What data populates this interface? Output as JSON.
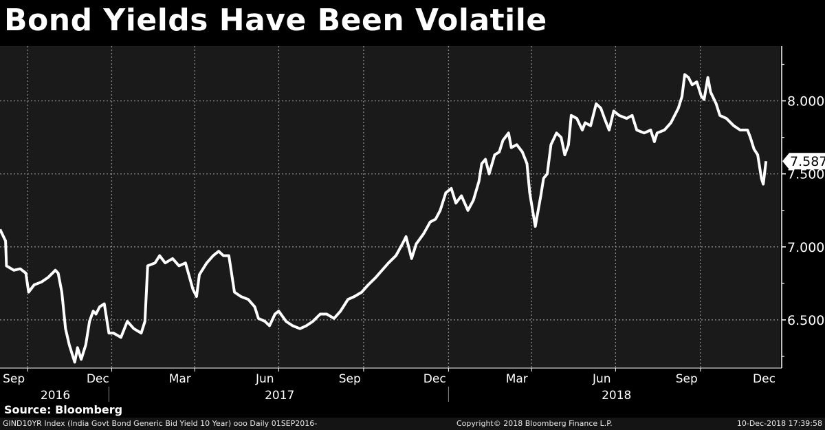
{
  "title": "Bond Yields Have Been Volatile",
  "source": "Source: Bloomberg",
  "footer": {
    "index_info": "GIND10YR Index (India Govt Bond Generic Bid Yield 10 Year) ooo  Daily 01SEP2016-",
    "copyright": "Copyright© 2018 Bloomberg Finance L.P.",
    "timestamp": "10-Dec-2018 17:39:58"
  },
  "colors": {
    "background": "#000000",
    "plot_bg": "#1a1a1a",
    "line": "#ffffff",
    "grid": "#8a8a8a"
  },
  "chart_data": {
    "type": "line",
    "title": "Bond Yields Have Been Volatile",
    "x_unit": "days since 2016-09-01",
    "x_start": "2016-09-01",
    "x_end": "2018-12-10",
    "xlim": [
      0,
      847
    ],
    "ylim": [
      6.17,
      8.375
    ],
    "y_ticks": [
      6.5,
      7.0,
      7.5,
      8.0
    ],
    "y_tick_labels": [
      "6.500",
      "7.000",
      "7.500",
      "8.000"
    ],
    "y_axis_side": "right",
    "grid": true,
    "month_ticks": [
      {
        "label": "Sep",
        "day": 15
      },
      {
        "label": "Dec",
        "day": 106
      },
      {
        "label": "Mar",
        "day": 195
      },
      {
        "label": "Jun",
        "day": 287
      },
      {
        "label": "Sep",
        "day": 379
      },
      {
        "label": "Dec",
        "day": 471
      },
      {
        "label": "Mar",
        "day": 560
      },
      {
        "label": "Jun",
        "day": 652
      },
      {
        "label": "Sep",
        "day": 744
      },
      {
        "label": "Dec",
        "day": 828
      }
    ],
    "year_ticks": [
      {
        "label": "2016",
        "day": 60
      },
      {
        "label": "2017",
        "day": 303
      },
      {
        "label": "2018",
        "day": 668
      }
    ],
    "year_boundaries": [
      118,
      486
    ],
    "quarter_gridlines": [
      30,
      121,
      211,
      302,
      394,
      486,
      576,
      667,
      759
    ],
    "last_value": 7.587,
    "last_value_label": "7.587",
    "series": [
      {
        "name": "GIND10YR Index",
        "points": [
          [
            0,
            7.12
          ],
          [
            6,
            7.04
          ],
          [
            7,
            6.87
          ],
          [
            15,
            6.84
          ],
          [
            22,
            6.85
          ],
          [
            28,
            6.82
          ],
          [
            31,
            6.69
          ],
          [
            37,
            6.74
          ],
          [
            45,
            6.76
          ],
          [
            52,
            6.79
          ],
          [
            60,
            6.84
          ],
          [
            63,
            6.82
          ],
          [
            67,
            6.69
          ],
          [
            71,
            6.44
          ],
          [
            75,
            6.33
          ],
          [
            81,
            6.21
          ],
          [
            84,
            6.31
          ],
          [
            88,
            6.23
          ],
          [
            93,
            6.33
          ],
          [
            97,
            6.49
          ],
          [
            101,
            6.56
          ],
          [
            104,
            6.54
          ],
          [
            108,
            6.59
          ],
          [
            113,
            6.61
          ],
          [
            118,
            6.41
          ],
          [
            123,
            6.41
          ],
          [
            131,
            6.38
          ],
          [
            138,
            6.49
          ],
          [
            145,
            6.44
          ],
          [
            153,
            6.41
          ],
          [
            157,
            6.49
          ],
          [
            160,
            6.87
          ],
          [
            168,
            6.89
          ],
          [
            173,
            6.94
          ],
          [
            179,
            6.89
          ],
          [
            187,
            6.92
          ],
          [
            194,
            6.87
          ],
          [
            201,
            6.89
          ],
          [
            209,
            6.71
          ],
          [
            213,
            6.66
          ],
          [
            216,
            6.81
          ],
          [
            224,
            6.89
          ],
          [
            231,
            6.94
          ],
          [
            237,
            6.97
          ],
          [
            242,
            6.94
          ],
          [
            248,
            6.94
          ],
          [
            254,
            6.69
          ],
          [
            261,
            6.66
          ],
          [
            269,
            6.64
          ],
          [
            276,
            6.59
          ],
          [
            280,
            6.51
          ],
          [
            287,
            6.49
          ],
          [
            292,
            6.46
          ],
          [
            298,
            6.54
          ],
          [
            302,
            6.56
          ],
          [
            310,
            6.49
          ],
          [
            317,
            6.46
          ],
          [
            325,
            6.44
          ],
          [
            332,
            6.46
          ],
          [
            339,
            6.49
          ],
          [
            347,
            6.54
          ],
          [
            354,
            6.54
          ],
          [
            362,
            6.51
          ],
          [
            369,
            6.56
          ],
          [
            377,
            6.64
          ],
          [
            384,
            6.66
          ],
          [
            392,
            6.69
          ],
          [
            399,
            6.74
          ],
          [
            407,
            6.79
          ],
          [
            414,
            6.84
          ],
          [
            421,
            6.89
          ],
          [
            429,
            6.94
          ],
          [
            436,
            7.02
          ],
          [
            440,
            7.07
          ],
          [
            446,
            6.92
          ],
          [
            451,
            7.02
          ],
          [
            459,
            7.09
          ],
          [
            466,
            7.17
          ],
          [
            472,
            7.19
          ],
          [
            477,
            7.25
          ],
          [
            483,
            7.37
          ],
          [
            489,
            7.4
          ],
          [
            494,
            7.3
          ],
          [
            500,
            7.35
          ],
          [
            507,
            7.25
          ],
          [
            513,
            7.32
          ],
          [
            519,
            7.45
          ],
          [
            522,
            7.57
          ],
          [
            526,
            7.6
          ],
          [
            530,
            7.5
          ],
          [
            536,
            7.63
          ],
          [
            541,
            7.65
          ],
          [
            545,
            7.73
          ],
          [
            551,
            7.78
          ],
          [
            554,
            7.68
          ],
          [
            560,
            7.7
          ],
          [
            566,
            7.65
          ],
          [
            571,
            7.57
          ],
          [
            574,
            7.37
          ],
          [
            580,
            7.14
          ],
          [
            586,
            7.35
          ],
          [
            589,
            7.47
          ],
          [
            593,
            7.5
          ],
          [
            597,
            7.7
          ],
          [
            603,
            7.78
          ],
          [
            608,
            7.75
          ],
          [
            612,
            7.63
          ],
          [
            616,
            7.7
          ],
          [
            619,
            7.9
          ],
          [
            625,
            7.88
          ],
          [
            631,
            7.8
          ],
          [
            634,
            7.85
          ],
          [
            640,
            7.83
          ],
          [
            646,
            7.98
          ],
          [
            651,
            7.95
          ],
          [
            655,
            7.88
          ],
          [
            660,
            7.8
          ],
          [
            665,
            7.93
          ],
          [
            671,
            7.9
          ],
          [
            679,
            7.88
          ],
          [
            685,
            7.9
          ],
          [
            690,
            7.8
          ],
          [
            698,
            7.78
          ],
          [
            705,
            7.8
          ],
          [
            709,
            7.72
          ],
          [
            712,
            7.78
          ],
          [
            720,
            7.8
          ],
          [
            727,
            7.85
          ],
          [
            735,
            7.95
          ],
          [
            739,
            8.03
          ],
          [
            742,
            8.18
          ],
          [
            746,
            8.16
          ],
          [
            750,
            8.11
          ],
          [
            755,
            8.13
          ],
          [
            760,
            8.03
          ],
          [
            763,
            8.01
          ],
          [
            767,
            8.16
          ],
          [
            770,
            8.06
          ],
          [
            776,
            7.98
          ],
          [
            780,
            7.9
          ],
          [
            787,
            7.88
          ],
          [
            795,
            7.83
          ],
          [
            802,
            7.8
          ],
          [
            810,
            7.8
          ],
          [
            813,
            7.75
          ],
          [
            817,
            7.67
          ],
          [
            821,
            7.63
          ],
          [
            825,
            7.47
          ],
          [
            827,
            7.43
          ],
          [
            830,
            7.587
          ]
        ]
      }
    ]
  }
}
